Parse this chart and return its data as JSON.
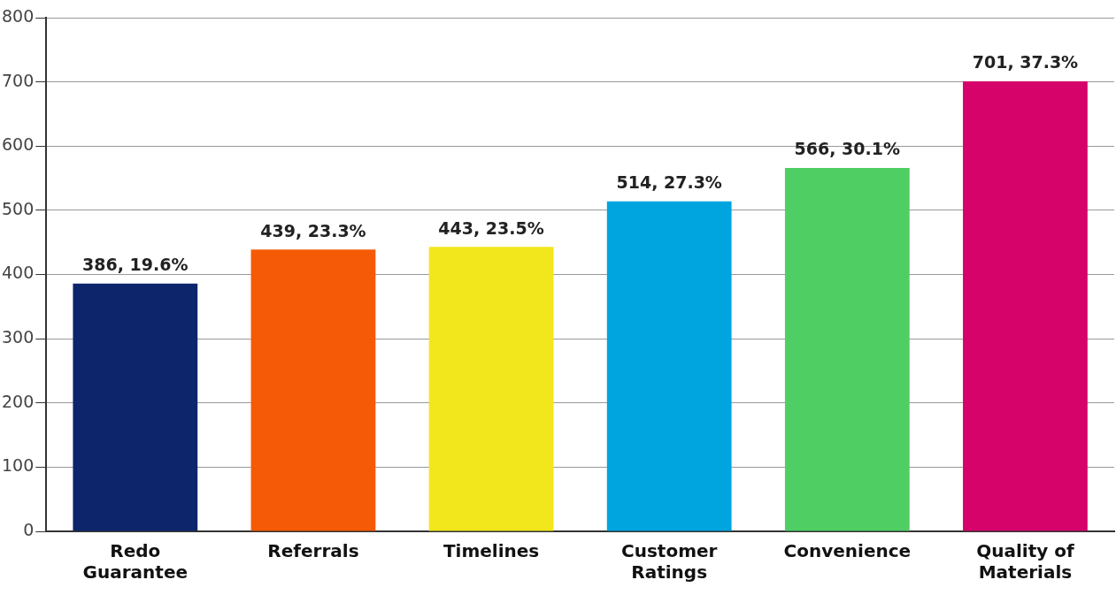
{
  "chart_data": {
    "type": "bar",
    "categories": [
      "Redo Guarantee",
      "Referrals",
      "Timelines",
      "Customer Ratings",
      "Convenience",
      "Quality of Materials"
    ],
    "values": [
      386,
      439,
      443,
      514,
      566,
      701
    ],
    "colors": [
      "#0c256b",
      "#f55b06",
      "#f2e61d",
      "#00a5df",
      "#4fce63",
      "#d6036b"
    ],
    "value_labels": [
      "386, 19.6%",
      "439, 23.3%",
      "443, 23.5%",
      "514, 27.3%",
      "566, 30.1%",
      "701, 37.3%"
    ],
    "ylim": [
      0,
      800
    ],
    "yticks": [
      0,
      100,
      200,
      300,
      400,
      500,
      600,
      700,
      800
    ],
    "grid": "y",
    "legend": false
  }
}
